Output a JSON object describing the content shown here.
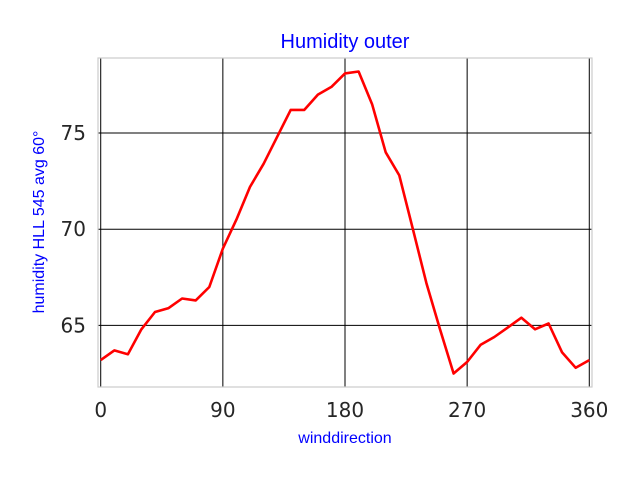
{
  "chart_data": {
    "type": "line",
    "title": "Humidity outer",
    "xlabel": "winddirection",
    "ylabel": "humidity HLL 545 avg 60°",
    "xlim": [
      -2,
      362
    ],
    "ylim": [
      61.8,
      78.9
    ],
    "xticks": [
      0,
      90,
      180,
      270,
      360
    ],
    "yticks": [
      65,
      70,
      75
    ],
    "grid": true,
    "legend": "none",
    "series": [
      {
        "color": "#ff0000",
        "x": [
          0,
          10,
          20,
          30,
          40,
          50,
          60,
          70,
          80,
          90,
          100,
          110,
          120,
          130,
          140,
          150,
          160,
          170,
          180,
          190,
          200,
          210,
          220,
          230,
          240,
          250,
          260,
          270,
          280,
          290,
          300,
          310,
          320,
          330,
          340,
          350,
          360
        ],
        "y": [
          63.2,
          63.7,
          63.5,
          64.8,
          65.7,
          65.9,
          66.4,
          66.3,
          67.0,
          69.0,
          70.5,
          72.2,
          73.4,
          74.8,
          76.2,
          76.2,
          77.0,
          77.4,
          78.1,
          78.2,
          76.5,
          74.0,
          72.8,
          70.0,
          67.2,
          64.8,
          62.5,
          63.1,
          64.0,
          64.4,
          64.9,
          65.4,
          64.8,
          65.1,
          63.6,
          62.8,
          63.2
        ]
      }
    ]
  }
}
